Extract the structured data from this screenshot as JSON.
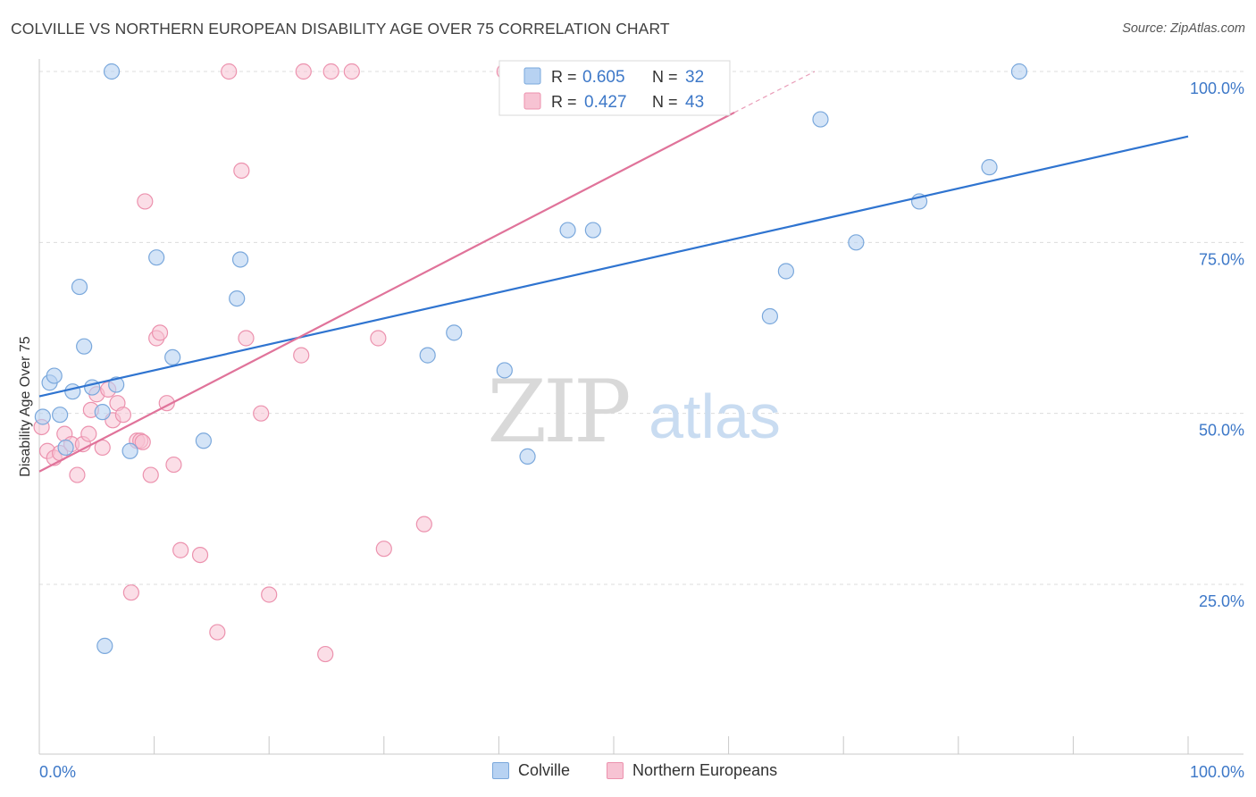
{
  "title": "COLVILLE VS NORTHERN EUROPEAN DISABILITY AGE OVER 75 CORRELATION CHART",
  "source": "Source: ZipAtlas.com",
  "watermark": {
    "zip": "ZIP",
    "atlas": "atlas"
  },
  "colors": {
    "blue_fill": "#b7d2f2",
    "blue_stroke": "#7aa8dc",
    "blue_line": "#2f74d0",
    "pink_fill": "#f7c3d3",
    "pink_stroke": "#ec92ae",
    "pink_line": "#e0739a",
    "axis_value": "#3d78c8",
    "grid": "#dcdcdc"
  },
  "legend_box": {
    "rows": [
      {
        "r_label": "R =",
        "r_value": "0.605",
        "n_label": "N =",
        "n_value": "32"
      },
      {
        "r_label": "R =",
        "r_value": "0.427",
        "n_label": "N =",
        "n_value": "43"
      }
    ]
  },
  "legend_bottom": {
    "items": [
      "Colville",
      "Northern Europeans"
    ]
  },
  "chart_data": {
    "type": "scatter",
    "ylabel": "Disability Age Over 75",
    "xlabel": "",
    "xlim": [
      0,
      100
    ],
    "ylim": [
      0,
      105
    ],
    "x_tick_labels": [
      "0.0%",
      "100.0%"
    ],
    "y_tick_labels": [
      "25.0%",
      "50.0%",
      "75.0%",
      "100.0%"
    ],
    "y_ticks": [
      25,
      50,
      75,
      100
    ],
    "grid": true,
    "legend_position": "top-center",
    "series": [
      {
        "name": "Colville",
        "r": 0.605,
        "n": 32,
        "trend": {
          "x0": 0,
          "y0": 52.5,
          "x1": 100,
          "y1": 90.5
        },
        "points": [
          [
            0.3,
            49.5
          ],
          [
            0.9,
            54.5
          ],
          [
            1.3,
            55.5
          ],
          [
            1.8,
            49.8
          ],
          [
            2.3,
            45.0
          ],
          [
            2.9,
            53.2
          ],
          [
            3.5,
            68.5
          ],
          [
            3.9,
            59.8
          ],
          [
            4.6,
            53.8
          ],
          [
            5.5,
            50.2
          ],
          [
            5.7,
            16.0
          ],
          [
            6.3,
            100.0
          ],
          [
            6.7,
            54.2
          ],
          [
            7.9,
            44.5
          ],
          [
            10.2,
            72.8
          ],
          [
            11.6,
            58.2
          ],
          [
            14.3,
            46.0
          ],
          [
            17.2,
            66.8
          ],
          [
            17.5,
            72.5
          ],
          [
            33.8,
            58.5
          ],
          [
            36.1,
            61.8
          ],
          [
            40.5,
            56.3
          ],
          [
            42.5,
            43.7
          ],
          [
            46.0,
            76.8
          ],
          [
            48.2,
            76.8
          ],
          [
            63.6,
            64.2
          ],
          [
            65.0,
            70.8
          ],
          [
            68.0,
            93.0
          ],
          [
            71.1,
            75.0
          ],
          [
            76.6,
            81.0
          ],
          [
            82.7,
            86.0
          ],
          [
            85.3,
            100.0
          ]
        ]
      },
      {
        "name": "Northern Europeans",
        "r": 0.427,
        "n": 43,
        "trend": {
          "x0": 0,
          "y0": 41.5,
          "x1": 60.5,
          "y1": 94.0,
          "dash_x1": 67.5,
          "dash_y1": 100.0
        },
        "points": [
          [
            0.2,
            48.0
          ],
          [
            0.7,
            44.5
          ],
          [
            1.3,
            43.5
          ],
          [
            1.8,
            44.2
          ],
          [
            2.2,
            47.0
          ],
          [
            2.8,
            45.5
          ],
          [
            3.3,
            41.0
          ],
          [
            3.8,
            45.5
          ],
          [
            4.3,
            47.0
          ],
          [
            4.5,
            50.5
          ],
          [
            5.0,
            52.8
          ],
          [
            5.5,
            45.0
          ],
          [
            6.0,
            53.5
          ],
          [
            6.4,
            49.0
          ],
          [
            6.8,
            51.5
          ],
          [
            7.3,
            49.8
          ],
          [
            8.0,
            23.8
          ],
          [
            8.5,
            46.0
          ],
          [
            8.8,
            46.0
          ],
          [
            9.0,
            45.8
          ],
          [
            9.2,
            81.0
          ],
          [
            9.7,
            41.0
          ],
          [
            10.2,
            61.0
          ],
          [
            10.5,
            61.8
          ],
          [
            11.1,
            51.5
          ],
          [
            11.7,
            42.5
          ],
          [
            12.3,
            30.0
          ],
          [
            14.0,
            29.3
          ],
          [
            15.5,
            18.0
          ],
          [
            16.5,
            100.0
          ],
          [
            17.6,
            85.5
          ],
          [
            18.0,
            61.0
          ],
          [
            19.3,
            50.0
          ],
          [
            20.0,
            23.5
          ],
          [
            22.8,
            58.5
          ],
          [
            23.0,
            100.0
          ],
          [
            24.9,
            14.8
          ],
          [
            25.4,
            100.0
          ],
          [
            27.2,
            100.0
          ],
          [
            29.5,
            61.0
          ],
          [
            30.0,
            30.2
          ],
          [
            33.5,
            33.8
          ],
          [
            40.5,
            100.0
          ]
        ]
      }
    ]
  }
}
